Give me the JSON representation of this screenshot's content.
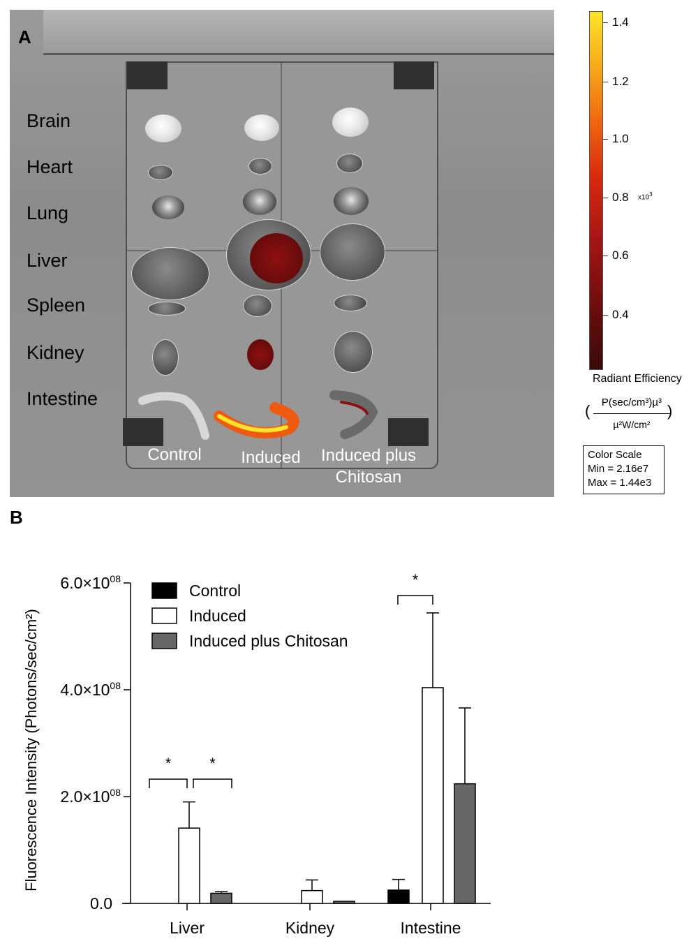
{
  "panel_a": {
    "letter": "A",
    "organs": [
      "Brain",
      "Heart",
      "Lung",
      "Liver",
      "Spleen",
      "Kidney",
      "Intestine"
    ],
    "groups": [
      "Control",
      "Induced",
      "Induced plus Chitosan"
    ],
    "colorbar": {
      "ticks": [
        "1.4",
        "1.2",
        "1.0",
        "0.8",
        "0.6",
        "0.4"
      ],
      "exponent": "x10",
      "exponent_power": "3",
      "title": "Radiant Efficiency",
      "unit_numerator": "P(sec/cm³)µ³",
      "unit_denominator": "µ²W/cm²",
      "scale_title": "Color Scale",
      "scale_min": "Min = 2.16e7",
      "scale_max": "Max = 1.44e3",
      "colors": [
        "#3a0a0a",
        "#a61414",
        "#f06a10",
        "#fde42a"
      ]
    }
  },
  "panel_b": {
    "letter": "B"
  },
  "chart_data": {
    "type": "bar",
    "title": "",
    "xlabel": "",
    "ylabel": "Fluorescence Intensity (Photons/sec/cm²)",
    "categories": [
      "Liver",
      "Kidney",
      "Intestine"
    ],
    "ylim": [
      0,
      600000000
    ],
    "yticks": [
      {
        "value": 0,
        "label": "0.0",
        "sup": ""
      },
      {
        "value": 200000000,
        "label": "2.0×10",
        "sup": "08"
      },
      {
        "value": 400000000,
        "label": "4.0×10",
        "sup": "08"
      },
      {
        "value": 600000000,
        "label": "6.0×10",
        "sup": "08"
      }
    ],
    "series": [
      {
        "name": "Control",
        "color": "#000000",
        "values": [
          0,
          0,
          25000000
        ],
        "errors": [
          0,
          0,
          20000000
        ]
      },
      {
        "name": "Induced",
        "color": "#ffffff",
        "values": [
          141000000,
          24000000,
          404000000
        ],
        "errors": [
          49000000,
          20000000,
          140000000
        ]
      },
      {
        "name": "Induced plus Chitosan",
        "color": "#666666",
        "values": [
          19000000,
          4000000,
          224000000
        ],
        "errors": [
          3000000,
          0,
          142000000
        ]
      }
    ],
    "legend_position": "top-left",
    "grid": false,
    "significance": [
      {
        "category": "Liver",
        "from_series": 0,
        "to_series": 1,
        "label": "*"
      },
      {
        "category": "Liver",
        "from_series": 1,
        "to_series": 2,
        "label": "*"
      },
      {
        "category": "Intestine",
        "from_series": 0,
        "to_series": 1,
        "label": "*"
      }
    ]
  }
}
